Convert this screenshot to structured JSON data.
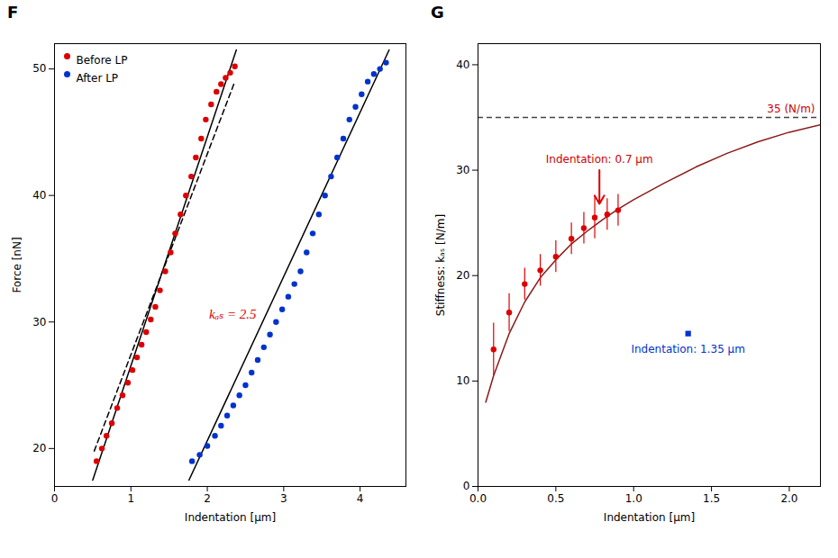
{
  "chart_data": [
    {
      "type": "scatter",
      "title": "F",
      "xlabel": "Indentation [μm]",
      "ylabel": "Force [nN]",
      "xlim": [
        0.0,
        4.6
      ],
      "ylim": [
        17,
        52
      ],
      "xticks": [
        0,
        1,
        2,
        3,
        4
      ],
      "yticks": [
        20,
        30,
        40,
        50
      ],
      "legend": "upper left",
      "series": [
        {
          "name": "Before LP",
          "type": "scatter",
          "marker": "circle",
          "color": "#dd0000",
          "x": [
            0.55,
            0.62,
            0.68,
            0.75,
            0.82,
            0.89,
            0.96,
            1.02,
            1.08,
            1.14,
            1.2,
            1.26,
            1.32,
            1.38,
            1.45,
            1.52,
            1.58,
            1.65,
            1.72,
            1.79,
            1.85,
            1.92,
            1.98,
            2.05,
            2.12,
            2.18,
            2.24,
            2.3,
            2.36
          ],
          "values": [
            19.0,
            20.0,
            21.0,
            22.0,
            23.2,
            24.2,
            25.2,
            26.2,
            27.2,
            28.2,
            29.2,
            30.2,
            31.2,
            32.5,
            34.0,
            35.5,
            37.0,
            38.5,
            40.0,
            41.5,
            43.0,
            44.5,
            46.0,
            47.2,
            48.2,
            48.8,
            49.3,
            49.7,
            50.2
          ]
        },
        {
          "name": "After LP",
          "type": "scatter",
          "marker": "circle",
          "color": "#0033cc",
          "x": [
            1.8,
            1.9,
            2.0,
            2.1,
            2.18,
            2.26,
            2.34,
            2.42,
            2.5,
            2.58,
            2.66,
            2.74,
            2.82,
            2.9,
            2.98,
            3.06,
            3.14,
            3.22,
            3.3,
            3.38,
            3.46,
            3.54,
            3.62,
            3.7,
            3.78,
            3.86,
            3.94,
            4.02,
            4.1,
            4.18,
            4.26,
            4.34
          ],
          "values": [
            19.0,
            19.5,
            20.2,
            21.0,
            21.8,
            22.6,
            23.4,
            24.2,
            25.0,
            26.0,
            27.0,
            28.0,
            29.0,
            30.0,
            31.0,
            32.0,
            33.0,
            34.0,
            35.5,
            37.0,
            38.5,
            40.0,
            41.5,
            43.0,
            44.5,
            46.0,
            47.0,
            48.0,
            49.0,
            49.6,
            50.0,
            50.5
          ]
        },
        {
          "type": "line",
          "line_style": "solid",
          "color": "#000000",
          "x": [
            0.5,
            2.38
          ],
          "values": [
            17.5,
            51.5
          ]
        },
        {
          "type": "line",
          "line_style": "solid",
          "color": "#000000",
          "x": [
            1.76,
            4.38
          ],
          "values": [
            17.5,
            51.5
          ]
        },
        {
          "type": "line",
          "line_style": "dashed",
          "color": "#000000",
          "x": [
            0.52,
            2.36
          ],
          "values": [
            19.8,
            49.0
          ]
        }
      ],
      "annotations": [
        {
          "text": "kₐₛ = 2.5",
          "color": "#dd0000"
        }
      ]
    },
    {
      "type": "line",
      "title": "G",
      "xlabel": "Indentation [μm]",
      "ylabel": "Stiffness: kₐₛ [N/m]",
      "xlim": [
        0.0,
        2.2
      ],
      "ylim": [
        0,
        42
      ],
      "xticks": [
        {
          "value": 0,
          "label": "0.0"
        },
        0.5,
        {
          "value": 1,
          "label": "1.0"
        },
        1.5,
        {
          "value": 2,
          "label": "2.0"
        }
      ],
      "yticks": [
        0,
        10,
        20,
        30,
        40
      ],
      "series": [
        {
          "type": "line",
          "line_style": "solid",
          "color": "#8b1a1a",
          "x": [
            0.05,
            0.1,
            0.15,
            0.2,
            0.3,
            0.4,
            0.5,
            0.6,
            0.7,
            0.8,
            0.9,
            1.0,
            1.2,
            1.4,
            1.6,
            1.8,
            2.0,
            2.2
          ],
          "values": [
            8.0,
            10.5,
            12.5,
            14.5,
            17.5,
            19.8,
            21.5,
            23.0,
            24.2,
            25.3,
            26.3,
            27.2,
            28.8,
            30.3,
            31.6,
            32.7,
            33.6,
            34.3
          ]
        },
        {
          "type": "scatter",
          "marker": "circle",
          "color": "#dd0000",
          "x": [
            0.1,
            0.2,
            0.3,
            0.4,
            0.5,
            0.6,
            0.68,
            0.75,
            0.83,
            0.9
          ],
          "values": [
            13.0,
            16.5,
            19.2,
            20.5,
            21.8,
            23.5,
            24.5,
            25.5,
            25.8,
            26.2
          ],
          "error_low": [
            2.5,
            1.8,
            1.5,
            1.5,
            1.5,
            1.5,
            1.5,
            2.0,
            1.5,
            1.5
          ],
          "error_high": [
            2.5,
            1.8,
            1.5,
            1.5,
            1.5,
            1.5,
            1.5,
            2.0,
            1.5,
            1.5
          ]
        },
        {
          "type": "scatter",
          "marker": "square",
          "color": "#0033cc",
          "x": [
            1.35
          ],
          "values": [
            14.5
          ]
        }
      ],
      "hlines": [
        {
          "value": 35,
          "color": "#444444",
          "line_style": "dashed",
          "label": "35 (N/m)",
          "label_color": "#cc0000"
        }
      ],
      "arrows": [
        {
          "x": 0.78,
          "y_start": 30.0,
          "y_end": 26.8,
          "color": "#dd0000"
        }
      ],
      "annotations": [
        {
          "text": "Indentation: 0.7 μm",
          "color": "#cc0000"
        },
        {
          "text": "Indentation: 1.35 μm",
          "color": "#0033cc"
        }
      ]
    }
  ]
}
